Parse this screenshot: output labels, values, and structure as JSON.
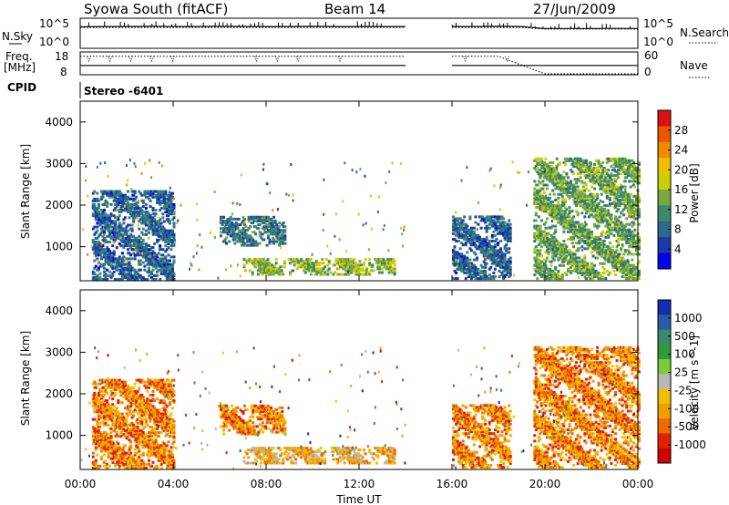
{
  "header": {
    "station": "Syowa South (fitACF)",
    "beam": "Beam 14",
    "date": "27/Jun/2009"
  },
  "top_panels": {
    "nsky_label": "N.Sky",
    "nsky_tick_hi": "10^5",
    "nsky_tick_lo": "10^0",
    "nsearch_label": "N.Search",
    "nsearch_tick_hi": "10^5",
    "nsearch_tick_lo": "10^0",
    "freq_label_1": "Freq.",
    "freq_label_2": "[MHz]",
    "freq_tick_hi": "18",
    "freq_tick_lo": "8",
    "nave_label": "Nave",
    "nave_tick_hi": "60",
    "nave_tick_lo": "0",
    "cpid_label": "CPID",
    "cpid_value": "Stereo -6401"
  },
  "power_colorbar": {
    "title": "Power [dB]",
    "ticks": [
      "28",
      "24",
      "20",
      "16",
      "12",
      "8",
      "4"
    ],
    "colors": [
      "#dd1111",
      "#ee5500",
      "#f08a00",
      "#f0c000",
      "#c8d000",
      "#7aa840",
      "#3a8a6a",
      "#2a6a8a",
      "#1a3aaa",
      "#0000ee"
    ]
  },
  "velocity_colorbar": {
    "title": "Velocity [m s^-1]",
    "ticks": [
      "1000",
      "500",
      "100",
      "25",
      "-25",
      "-100",
      "-500",
      "-1000"
    ],
    "colors": [
      "#1030b0",
      "#2a5aa8",
      "#3a8a70",
      "#2e9a3a",
      "#7acc3a",
      "#b8b8b8",
      "#f0c000",
      "#f0a000",
      "#ee6a00",
      "#e02000",
      "#d00000"
    ]
  },
  "chart_data": [
    {
      "type": "line",
      "title": "N.Sky / N.Search",
      "x": [
        "00:00",
        "01:00",
        "02:00",
        "03:00",
        "04:00",
        "05:00",
        "06:00",
        "07:00",
        "08:00",
        "09:00",
        "10:00",
        "11:00",
        "12:00",
        "13:00",
        "14:00",
        "16:00",
        "17:00",
        "18:00",
        "19:00",
        "20:00",
        "21:00",
        "22:00",
        "23:00",
        "24:00"
      ],
      "series": [
        {
          "name": "N.Sky",
          "values": [
            5000,
            6000,
            6000,
            6500,
            6000,
            6000,
            6500,
            6000,
            6000,
            6000,
            6500,
            6000,
            6000,
            6000,
            6000,
            6000,
            6000,
            6500,
            6000,
            2500,
            2500,
            2500,
            2600,
            2500
          ]
        },
        {
          "name": "N.Search",
          "values": [
            4000,
            4000,
            4000,
            4000,
            4000,
            4000,
            4000,
            4000,
            4000,
            4000,
            4000,
            4000,
            4000,
            4000,
            4000,
            4000,
            4000,
            4000,
            4000,
            2000,
            2000,
            2000,
            2000,
            2000
          ]
        }
      ],
      "ylim": [
        1,
        100000
      ],
      "log": true
    },
    {
      "type": "line",
      "title": "Freq. / Nave",
      "x": [
        "00:00",
        "02:00",
        "04:00",
        "06:00",
        "08:00",
        "10:00",
        "12:00",
        "14:00",
        "16:00",
        "18:00",
        "20:00",
        "22:00",
        "24:00"
      ],
      "series": [
        {
          "name": "Freq.",
          "values": [
            12,
            12,
            12,
            12,
            12,
            12,
            12,
            12,
            12,
            12,
            12,
            12,
            12
          ]
        },
        {
          "name": "Nave",
          "values": [
            50,
            50,
            50,
            50,
            50,
            50,
            50,
            50,
            50,
            50,
            0,
            0,
            0
          ]
        }
      ],
      "ylim_freq": [
        8,
        18
      ],
      "ylim_nave": [
        0,
        60
      ]
    },
    {
      "type": "heatmap",
      "title": "Power",
      "xlabel": "Time UT",
      "ylabel": "Slant Range [km]",
      "x_ticks": [
        "00:00",
        "04:00",
        "08:00",
        "12:00",
        "16:00",
        "20:00",
        "00:00"
      ],
      "y_ticks": [
        "1000",
        "2000",
        "3000",
        "4000"
      ],
      "xlim_hours": [
        0,
        24
      ],
      "ylim_km": [
        180,
        4500
      ],
      "data_gap_hours": [
        14,
        16
      ],
      "value_range_db": [
        0,
        30
      ],
      "echo_regions": [
        {
          "t0": 0.5,
          "t1": 4.0,
          "r0": 180,
          "r1": 2300,
          "level_db": 6
        },
        {
          "t0": 6.0,
          "t1": 8.8,
          "r0": 1000,
          "r1": 1700,
          "level_db": 8
        },
        {
          "t0": 7.0,
          "t1": 13.5,
          "r0": 300,
          "r1": 700,
          "level_db": 14
        },
        {
          "t0": 16.0,
          "t1": 18.5,
          "r0": 200,
          "r1": 1700,
          "level_db": 6
        },
        {
          "t0": 19.5,
          "t1": 24.0,
          "r0": 200,
          "r1": 3100,
          "level_db": 12
        }
      ]
    },
    {
      "type": "heatmap",
      "title": "Velocity",
      "xlabel": "Time UT",
      "ylabel": "Slant Range [km]",
      "x_ticks": [
        "00:00",
        "04:00",
        "08:00",
        "12:00",
        "16:00",
        "20:00",
        "00:00"
      ],
      "y_ticks": [
        "1000",
        "2000",
        "3000",
        "4000"
      ],
      "xlim_hours": [
        0,
        24
      ],
      "ylim_km": [
        180,
        4500
      ],
      "data_gap_hours": [
        14,
        16
      ],
      "value_range_ms": [
        -1000,
        1000
      ],
      "echo_regions": [
        {
          "t0": 0.5,
          "t1": 4.0,
          "r0": 180,
          "r1": 2300,
          "level_ms": -100
        },
        {
          "t0": 6.0,
          "t1": 8.8,
          "r0": 1000,
          "r1": 1700,
          "level_ms": -100
        },
        {
          "t0": 7.0,
          "t1": 13.5,
          "r0": 300,
          "r1": 700,
          "level_ms": 25
        },
        {
          "t0": 16.0,
          "t1": 18.5,
          "r0": 200,
          "r1": 1700,
          "level_ms": -100
        },
        {
          "t0": 19.5,
          "t1": 24.0,
          "r0": 200,
          "r1": 3100,
          "level_ms": -100
        }
      ]
    }
  ]
}
